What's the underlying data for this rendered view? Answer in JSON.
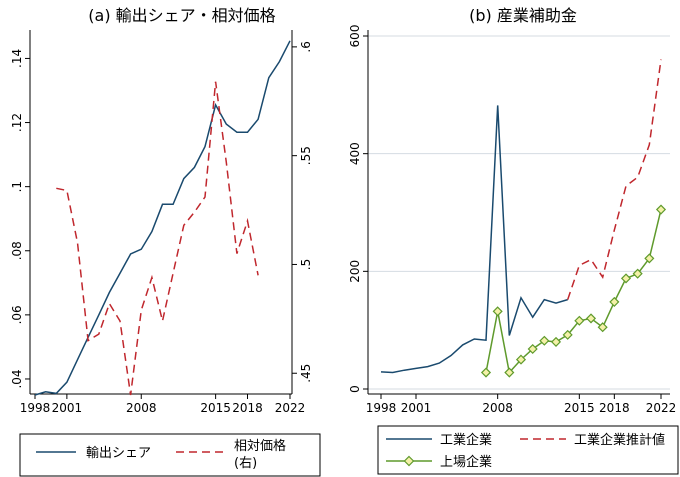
{
  "chart_data": [
    {
      "type": "line",
      "title": "(a) 輸出シェア・相対価格",
      "x_ticks": [
        1998,
        2001,
        2008,
        2015,
        2018,
        2022
      ],
      "x_range": [
        1998,
        2022
      ],
      "left_axis": {
        "range": [
          0.035,
          0.147
        ],
        "ticks": [
          0.04,
          0.06,
          0.08,
          0.1,
          0.12,
          0.14
        ],
        "tick_labels": [
          ".04",
          ".06",
          ".08",
          ".1",
          ".12",
          ".14"
        ]
      },
      "right_axis": {
        "range": [
          0.44,
          0.605
        ],
        "ticks": [
          0.45,
          0.5,
          0.55,
          0.6
        ],
        "tick_labels": [
          ".45",
          ".5",
          ".55",
          ".6"
        ]
      },
      "series": [
        {
          "name": "輸出シェア",
          "axis": "left",
          "style": "solid",
          "color": "#1a4a6e",
          "x": [
            1998,
            1999,
            2000,
            2001,
            2002,
            2003,
            2004,
            2005,
            2006,
            2007,
            2008,
            2009,
            2010,
            2011,
            2012,
            2013,
            2014,
            2015,
            2016,
            2017,
            2018,
            2019,
            2020,
            2021,
            2022
          ],
          "values": [
            0.035,
            0.036,
            0.0355,
            0.039,
            0.046,
            0.053,
            0.06,
            0.067,
            0.073,
            0.079,
            0.0805,
            0.086,
            0.0945,
            0.0945,
            0.1025,
            0.106,
            0.1125,
            0.1255,
            0.1195,
            0.117,
            0.117,
            0.121,
            0.134,
            0.139,
            0.1455
          ]
        },
        {
          "name": "相対価格(右)",
          "axis": "right",
          "style": "dashed",
          "color": "#c0272d",
          "x": [
            2000,
            2001,
            2002,
            2003,
            2004,
            2005,
            2006,
            2007,
            2008,
            2009,
            2010,
            2011,
            2012,
            2013,
            2014,
            2015,
            2016,
            2017,
            2018,
            2019
          ],
          "values": [
            0.535,
            0.534,
            0.51,
            0.465,
            0.468,
            0.482,
            0.474,
            0.44,
            0.479,
            0.494,
            0.474,
            0.496,
            0.518,
            0.524,
            0.531,
            0.584,
            0.547,
            0.505,
            0.52,
            0.495
          ]
        }
      ],
      "legend": {
        "position": "bottom",
        "items": [
          "輸出シェア",
          "相対価格",
          "(右)"
        ]
      }
    },
    {
      "type": "line",
      "title": "(b) 産業補助金",
      "x_ticks": [
        1998,
        2001,
        2008,
        2015,
        2018,
        2022
      ],
      "x_range": [
        1998,
        2022
      ],
      "ylim": [
        -5,
        600
      ],
      "y_ticks": [
        0,
        200,
        400,
        600
      ],
      "series": [
        {
          "name": "工業企業",
          "style": "solid",
          "color": "#1a4a6e",
          "x": [
            1998,
            1999,
            2000,
            2001,
            2002,
            2003,
            2004,
            2005,
            2006,
            2007,
            2008,
            2009,
            2010,
            2011,
            2012,
            2013,
            2014
          ],
          "values": [
            29,
            28,
            32,
            35,
            38,
            44,
            57,
            75,
            85,
            83,
            482,
            91,
            155,
            122,
            152,
            146,
            152
          ]
        },
        {
          "name": "工業企業推計値",
          "style": "dashed",
          "color": "#c0272d",
          "x": [
            2014,
            2015,
            2016,
            2017,
            2018,
            2019,
            2020,
            2021,
            2022
          ],
          "values": [
            152,
            210,
            220,
            190,
            270,
            345,
            360,
            415,
            560
          ]
        },
        {
          "name": "上場企業",
          "style": "solid-diamond",
          "color": "#5f9a2c",
          "x": [
            2007,
            2008,
            2009,
            2010,
            2011,
            2012,
            2013,
            2014,
            2015,
            2016,
            2017,
            2018,
            2019,
            2020,
            2021,
            2022
          ],
          "values": [
            28,
            132,
            28,
            50,
            68,
            82,
            80,
            92,
            116,
            120,
            105,
            148,
            188,
            196,
            222,
            305
          ]
        }
      ],
      "legend": {
        "position": "bottom",
        "items": [
          "工業企業",
          "工業企業推計値",
          "上場企業"
        ]
      }
    }
  ]
}
